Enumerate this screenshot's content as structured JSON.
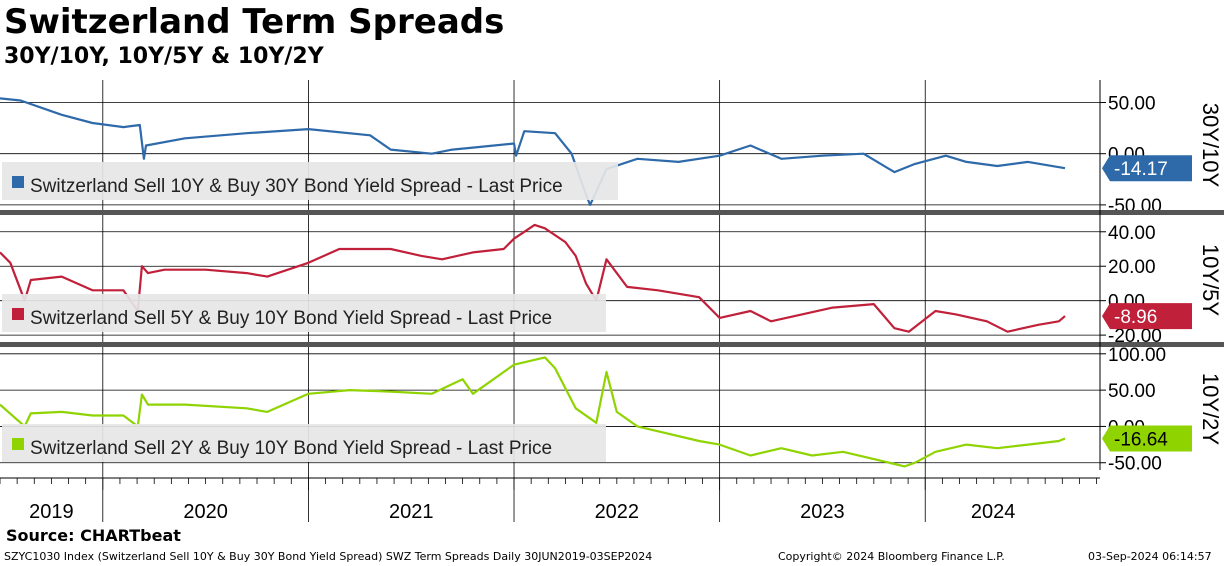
{
  "title": "Switzerland Term Spreads",
  "subtitle": "30Y/10Y, 10Y/5Y & 10Y/2Y",
  "source": "Source: CHARTbeat",
  "footer": {
    "left": "SZYC1030 Index (Switzerland Sell 10Y & Buy 30Y Bond Yield Spread) SWZ Term Spreads  Daily 30JUN2019-03SEP2024",
    "center": "Copyright© 2024 Bloomberg Finance L.P.",
    "right": "03-Sep-2024 06:14:57"
  },
  "chart_data": [
    {
      "type": "line",
      "panel_label": "30Y/10Y",
      "legend": "Switzerland Sell 10Y & Buy 30Y Bond Yield Spread - Last Price",
      "last_value": "-14.17",
      "color": "#2e6aaa",
      "ylim": [
        -55,
        72
      ],
      "yticks": [
        "50.00",
        "0.00",
        "-50.00"
      ],
      "ytick_values": [
        50,
        0,
        -50
      ],
      "x": [
        2019.5,
        2019.6,
        2019.8,
        2019.95,
        2020.1,
        2020.18,
        2020.2,
        2020.21,
        2020.4,
        2020.7,
        2021.0,
        2021.3,
        2021.4,
        2021.6,
        2021.7,
        2021.8,
        2022.0,
        2022.01,
        2022.05,
        2022.2,
        2022.28,
        2022.35,
        2022.37,
        2022.45,
        2022.6,
        2022.8,
        2023.0,
        2023.15,
        2023.3,
        2023.5,
        2023.7,
        2023.85,
        2023.95,
        2024.1,
        2024.2,
        2024.35,
        2024.5,
        2024.68
      ],
      "values": [
        54,
        52,
        38,
        30,
        26,
        28,
        -5,
        8,
        15,
        20,
        24,
        18,
        4,
        0,
        4,
        6,
        10,
        -2,
        22,
        20,
        0,
        -40,
        -50,
        -15,
        -5,
        -8,
        -2,
        8,
        -5,
        -2,
        0,
        -18,
        -10,
        -2,
        -8,
        -12,
        -8,
        -14.17
      ]
    },
    {
      "type": "line",
      "panel_label": "10Y/5Y",
      "legend": "Switzerland Sell 5Y & Buy 10Y Bond Yield Spread - Last Price",
      "last_value": "-8.96",
      "color": "#c0203a",
      "ylim": [
        -24,
        48
      ],
      "yticks": [
        "40.00",
        "20.00",
        "0.00",
        "-20.00"
      ],
      "ytick_values": [
        40,
        20,
        0,
        -20
      ],
      "x": [
        2019.5,
        2019.55,
        2019.62,
        2019.65,
        2019.8,
        2019.95,
        2020.1,
        2020.17,
        2020.19,
        2020.22,
        2020.3,
        2020.5,
        2020.7,
        2020.8,
        2021.0,
        2021.15,
        2021.4,
        2021.55,
        2021.65,
        2021.8,
        2021.95,
        2022.0,
        2022.1,
        2022.15,
        2022.25,
        2022.3,
        2022.35,
        2022.4,
        2022.45,
        2022.55,
        2022.7,
        2022.9,
        2023.0,
        2023.15,
        2023.25,
        2023.4,
        2023.55,
        2023.75,
        2023.85,
        2023.92,
        2024.05,
        2024.15,
        2024.3,
        2024.4,
        2024.55,
        2024.65,
        2024.68
      ],
      "values": [
        28,
        22,
        0,
        12,
        14,
        6,
        6,
        -6,
        20,
        16,
        18,
        18,
        16,
        14,
        22,
        30,
        30,
        26,
        24,
        28,
        30,
        36,
        44,
        42,
        34,
        26,
        10,
        0,
        24,
        8,
        6,
        2,
        -10,
        -6,
        -12,
        -8,
        -4,
        -2,
        -16,
        -18,
        -6,
        -8,
        -12,
        -18,
        -14,
        -12,
        -8.96
      ]
    },
    {
      "type": "line",
      "panel_label": "10Y/2Y",
      "legend": "Switzerland Sell 2Y & Buy 10Y Bond Yield Spread - Last Price",
      "last_value": "-16.64",
      "color": "#8fd400",
      "ylim": [
        -60,
        108
      ],
      "yticks": [
        "100.00",
        "50.00",
        "0.00",
        "-50.00"
      ],
      "ytick_values": [
        100,
        50,
        0,
        -50
      ],
      "x": [
        2019.5,
        2019.62,
        2019.65,
        2019.8,
        2019.95,
        2020.1,
        2020.17,
        2020.19,
        2020.22,
        2020.4,
        2020.7,
        2020.8,
        2021.0,
        2021.2,
        2021.4,
        2021.6,
        2021.75,
        2021.8,
        2021.95,
        2022.0,
        2022.15,
        2022.2,
        2022.3,
        2022.4,
        2022.45,
        2022.5,
        2022.6,
        2022.75,
        2022.9,
        2023.0,
        2023.15,
        2023.3,
        2023.45,
        2023.6,
        2023.75,
        2023.9,
        2023.95,
        2024.05,
        2024.2,
        2024.35,
        2024.5,
        2024.65,
        2024.68
      ],
      "values": [
        30,
        0,
        18,
        20,
        15,
        15,
        0,
        44,
        30,
        30,
        25,
        20,
        45,
        50,
        48,
        45,
        65,
        45,
        75,
        85,
        95,
        80,
        25,
        5,
        75,
        20,
        0,
        -10,
        -20,
        -25,
        -40,
        -30,
        -40,
        -35,
        -45,
        -55,
        -50,
        -35,
        -25,
        -30,
        -25,
        -20,
        -16.64
      ]
    }
  ],
  "x_axis": {
    "labels": [
      "2019",
      "2020",
      "2021",
      "2022",
      "2023",
      "2024"
    ],
    "label_positions": [
      2019.75,
      2020.5,
      2021.5,
      2022.5,
      2023.5,
      2024.33
    ],
    "year_boundaries": [
      2020.0,
      2021.0,
      2022.0,
      2023.0,
      2024.0
    ],
    "range": [
      2019.5,
      2024.85
    ]
  }
}
